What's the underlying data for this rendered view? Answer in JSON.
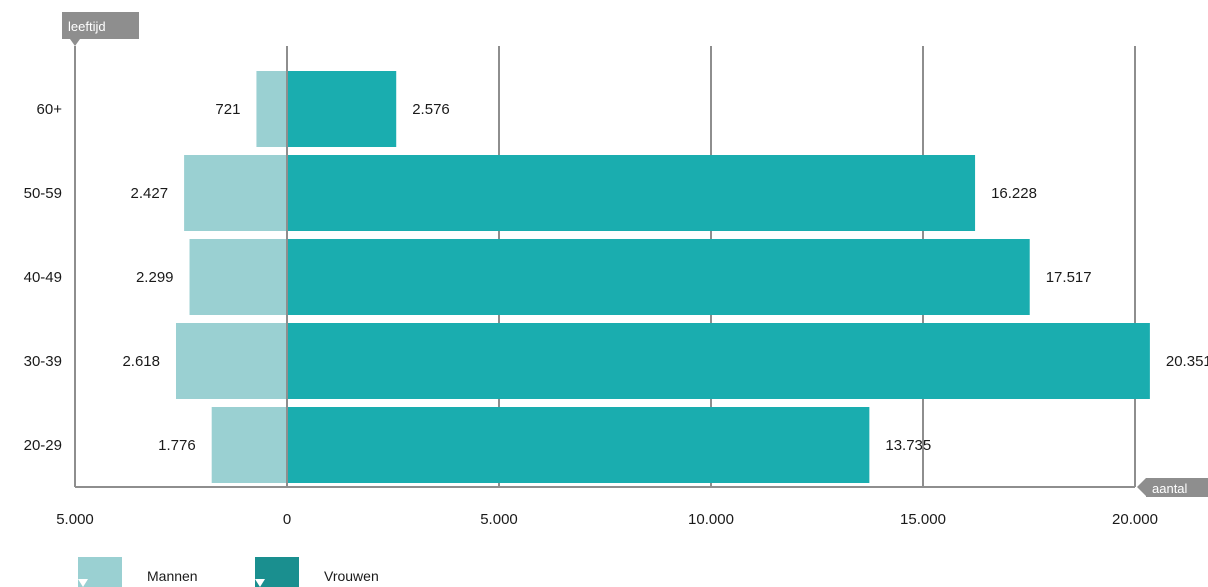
{
  "chart_data": {
    "type": "bar",
    "orientation": "horizontal",
    "categories": [
      "60+",
      "50-59",
      "40-49",
      "30-39",
      "20-29"
    ],
    "series": [
      {
        "name": "Mannen",
        "values": [
          -721,
          -2427,
          -2299,
          -2618,
          -1776
        ],
        "labels": [
          "721",
          "2.427",
          "2.299",
          "2.618",
          "1.776"
        ],
        "color": "#9ad0d2"
      },
      {
        "name": "Vrouwen",
        "values": [
          2576,
          16228,
          17517,
          20351,
          13735
        ],
        "labels": [
          "2.576",
          "16.228",
          "17.517",
          "20.351",
          "13.735"
        ],
        "color": "#1aadaf"
      }
    ],
    "xlabel": "aantal",
    "ylabel": "leeftijd",
    "xlim": [
      -5000,
      20000
    ],
    "xticks": [
      -5000,
      0,
      5000,
      10000,
      15000,
      20000
    ],
    "xtick_labels": [
      "5.000",
      "0",
      "5.000",
      "10.000",
      "15.000",
      "20.000"
    ],
    "grid": true,
    "legend_position": "bottom-left",
    "colors": {
      "gridline": "#8e8e8e",
      "axis_tag": "#8e8e8e",
      "legend_vrouwen_swatch": "#1a8f8f"
    }
  }
}
